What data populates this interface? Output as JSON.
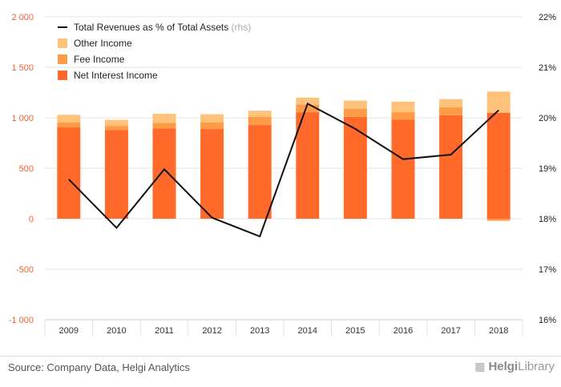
{
  "chart_data": {
    "type": "bar",
    "categories": [
      "2009",
      "2010",
      "2011",
      "2012",
      "2013",
      "2014",
      "2015",
      "2016",
      "2017",
      "2018"
    ],
    "series": [
      {
        "name": "Net Interest Income",
        "type": "bar",
        "axis": "left",
        "color": "#ff6a2a",
        "values": [
          905,
          880,
          895,
          890,
          930,
          1055,
          1010,
          980,
          1025,
          1050
        ]
      },
      {
        "name": "Fee Income",
        "type": "bar",
        "axis": "left",
        "color": "#ff9a46",
        "values": [
          50,
          40,
          55,
          65,
          80,
          75,
          80,
          75,
          80,
          -20
        ]
      },
      {
        "name": "Other Income",
        "type": "bar",
        "axis": "left",
        "color": "#ffc27a",
        "values": [
          75,
          60,
          90,
          80,
          60,
          70,
          80,
          105,
          80,
          210
        ]
      },
      {
        "name": "Total Revenues as % of Total Assets",
        "type": "line",
        "axis": "right",
        "color": "#111111",
        "values": [
          18.78,
          17.82,
          18.98,
          18.02,
          17.65,
          20.28,
          19.78,
          19.18,
          19.27,
          20.15
        ]
      }
    ],
    "legend_items": [
      {
        "label": "Total Revenues as % of Total Assets",
        "suffix": "(rhs)",
        "kind": "line",
        "color": "#111111"
      },
      {
        "label": "Other Income",
        "kind": "box",
        "color": "#ffc27a"
      },
      {
        "label": "Fee Income",
        "kind": "box",
        "color": "#ff9a46"
      },
      {
        "label": "Net Interest Income",
        "kind": "box",
        "color": "#ff6a2a"
      }
    ],
    "left_axis": {
      "min": -1000,
      "max": 2000,
      "ticks": [
        -1000,
        -500,
        0,
        500,
        1000,
        1500,
        2000
      ],
      "tick_labels": [
        "-1 000",
        "-500",
        "0",
        "500",
        "1 000",
        "1 500",
        "2 000"
      ],
      "color": "#f0622d"
    },
    "right_axis": {
      "min": 16,
      "max": 22,
      "ticks": [
        16,
        17,
        18,
        19,
        20,
        21,
        22
      ],
      "tick_labels": [
        "16%",
        "17%",
        "18%",
        "19%",
        "20%",
        "21%",
        "22%"
      ],
      "color": "#222222"
    },
    "grid": true,
    "legend_position": "top-left"
  },
  "footer": {
    "source": "Source: Company Data, Helgi Analytics",
    "logo_prefix": "Helgi",
    "logo_suffix": "Library"
  }
}
